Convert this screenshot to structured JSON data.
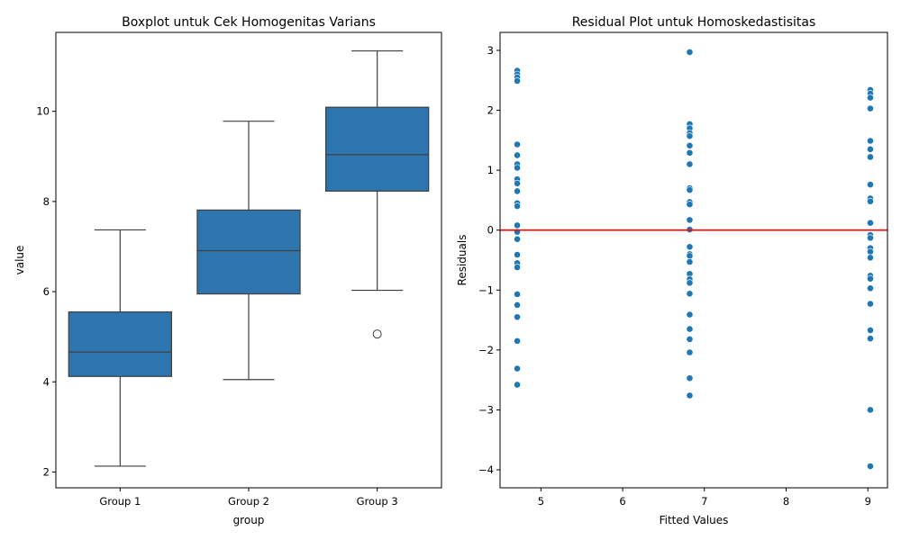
{
  "chart_data": [
    {
      "type": "box",
      "title": "Boxplot untuk Cek Homogenitas Varians",
      "xlabel": "group",
      "ylabel": "value",
      "ylim": [
        1.65,
        11.75
      ],
      "yticks": [
        2,
        4,
        6,
        8,
        10
      ],
      "color": "#2e75b0",
      "groups": [
        {
          "name": "Group 1",
          "whisker_low": 2.13,
          "q1": 4.12,
          "median": 4.66,
          "q3": 5.55,
          "whisker_high": 7.37,
          "outliers": []
        },
        {
          "name": "Group 2",
          "whisker_low": 4.05,
          "q1": 5.95,
          "median": 6.91,
          "q3": 7.81,
          "whisker_high": 9.78,
          "outliers": []
        },
        {
          "name": "Group 3",
          "whisker_low": 6.03,
          "q1": 8.23,
          "median": 9.04,
          "q3": 10.09,
          "whisker_high": 11.34,
          "outliers": [
            5.06
          ]
        }
      ]
    },
    {
      "type": "scatter",
      "title": "Residual Plot untuk Homoskedastisitas",
      "xlabel": "Fitted Values",
      "ylabel": "Residuals",
      "xlim": [
        4.5,
        9.24
      ],
      "ylim": [
        -4.3,
        3.3
      ],
      "xticks": [
        5,
        6,
        7,
        8,
        9
      ],
      "yticks": [
        3,
        2,
        1,
        0,
        -1,
        -2,
        -3,
        -4
      ],
      "point_color": "#1f77b4",
      "reference_line": {
        "y": 0,
        "color": "#ff0000"
      },
      "series": [
        {
          "x": 4.71,
          "y": [
            2.66,
            2.6,
            2.55,
            2.49,
            1.43,
            1.25,
            1.1,
            1.04,
            0.85,
            0.78,
            0.65,
            0.45,
            0.4,
            0.08,
            -0.03,
            -0.15,
            -0.41,
            -0.55,
            -0.62,
            -1.07,
            -1.25,
            -1.45,
            -1.85,
            -2.31,
            -2.58
          ]
        },
        {
          "x": 6.82,
          "y": [
            2.97,
            1.77,
            1.7,
            1.62,
            1.57,
            1.41,
            1.29,
            1.1,
            0.7,
            0.67,
            0.47,
            0.43,
            0.17,
            0.01,
            -0.28,
            -0.4,
            -0.43,
            -0.53,
            -0.73,
            -0.82,
            -0.88,
            -1.06,
            -1.41,
            -1.65,
            -1.82,
            -2.04,
            -2.47,
            -2.76
          ]
        },
        {
          "x": 9.03,
          "y": [
            2.34,
            2.28,
            2.21,
            2.03,
            1.49,
            1.35,
            1.22,
            0.76,
            0.53,
            0.48,
            0.12,
            -0.08,
            -0.13,
            -0.3,
            -0.36,
            -0.46,
            -0.76,
            -0.81,
            -0.97,
            -1.23,
            -1.67,
            -1.81,
            -3.0,
            -3.94
          ]
        }
      ]
    }
  ]
}
